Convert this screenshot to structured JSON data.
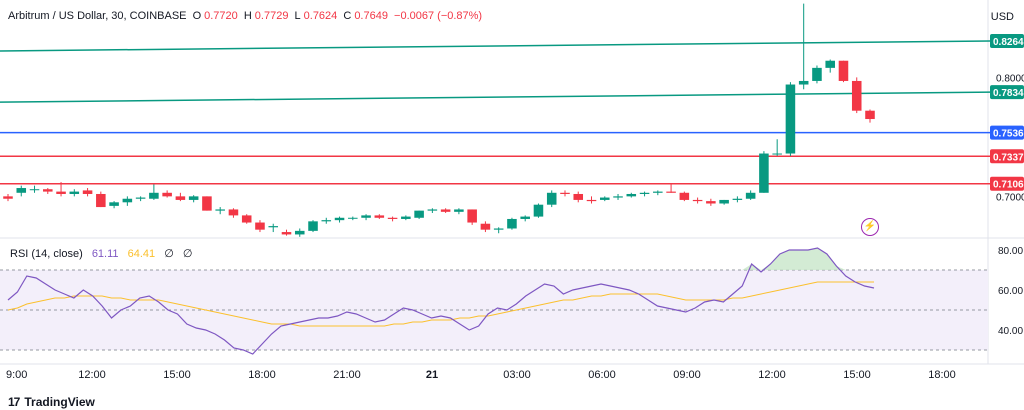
{
  "header": {
    "symbol": "Arbitrum / US Dollar, 30, COINBASE",
    "o_label": "O",
    "o": "0.7720",
    "h_label": "H",
    "h": "0.7729",
    "l_label": "L",
    "l": "0.7624",
    "c_label": "C",
    "c": "0.7649",
    "change": "−0.0067 (−0.87%)",
    "currency": "USD"
  },
  "rsi": {
    "title": "RSI (14, close)",
    "value1": "61.11",
    "value2": "64.41",
    "zero1": "∅",
    "zero2": "∅"
  },
  "brand": {
    "name": "TradingView",
    "logo": "17"
  },
  "colors": {
    "up": "#089981",
    "down": "#f23645",
    "resistance": "#089981",
    "support": "#f23645",
    "mid": "#2962ff",
    "rsi_line": "#7e57c2",
    "rsi_ma": "#fbc02d",
    "rsi_band": "#f3effa"
  },
  "icons": {
    "event": "lightning-icon"
  },
  "chart_data": [
    {
      "type": "candlestick",
      "title": "Arbitrum / US Dollar, 30, COINBASE",
      "xlabel": "",
      "ylabel": "",
      "x_ticks": [
        "9:00",
        "12:00",
        "15:00",
        "18:00",
        "21:00",
        "21",
        "03:00",
        "06:00",
        "09:00",
        "12:00",
        "15:00",
        "18:00"
      ],
      "y_ticks": [
        "0.8000",
        "0.7000"
      ],
      "price_labels": [
        {
          "label": "0.8264",
          "value": 0.8264,
          "kind": "resistance"
        },
        {
          "label": "0.7834",
          "value": 0.7834,
          "kind": "resistance"
        },
        {
          "label": "0.7536",
          "value": 0.7536,
          "kind": "mid"
        },
        {
          "label": "0.7337",
          "value": 0.7337,
          "kind": "support"
        },
        {
          "label": "0.7106",
          "value": 0.7106,
          "kind": "support"
        }
      ],
      "ylim": [
        0.665,
        0.86
      ],
      "candles": [
        [
          0.7,
          0.702,
          0.696,
          0.698
        ],
        [
          0.703,
          0.709,
          0.7,
          0.707
        ],
        [
          0.706,
          0.709,
          0.703,
          0.706
        ],
        [
          0.706,
          0.707,
          0.702,
          0.704
        ],
        [
          0.704,
          0.712,
          0.7,
          0.702
        ],
        [
          0.702,
          0.706,
          0.7,
          0.704
        ],
        [
          0.705,
          0.707,
          0.7,
          0.702
        ],
        [
          0.702,
          0.704,
          0.691,
          0.691
        ],
        [
          0.692,
          0.696,
          0.69,
          0.695
        ],
        [
          0.695,
          0.7,
          0.692,
          0.698
        ],
        [
          0.698,
          0.7,
          0.696,
          0.699
        ],
        [
          0.698,
          0.71,
          0.697,
          0.703
        ],
        [
          0.703,
          0.705,
          0.699,
          0.7
        ],
        [
          0.7,
          0.703,
          0.696,
          0.697
        ],
        [
          0.697,
          0.701,
          0.695,
          0.7
        ],
        [
          0.7,
          0.7,
          0.688,
          0.688
        ],
        [
          0.688,
          0.691,
          0.685,
          0.689
        ],
        [
          0.689,
          0.69,
          0.682,
          0.684
        ],
        [
          0.684,
          0.685,
          0.677,
          0.678
        ],
        [
          0.678,
          0.68,
          0.67,
          0.672
        ],
        [
          0.674,
          0.677,
          0.67,
          0.675
        ],
        [
          0.67,
          0.672,
          0.667,
          0.668
        ],
        [
          0.668,
          0.673,
          0.666,
          0.671
        ],
        [
          0.671,
          0.68,
          0.67,
          0.679
        ],
        [
          0.679,
          0.682,
          0.677,
          0.68
        ],
        [
          0.68,
          0.683,
          0.678,
          0.682
        ],
        [
          0.682,
          0.683,
          0.68,
          0.682
        ],
        [
          0.682,
          0.685,
          0.68,
          0.684
        ],
        [
          0.684,
          0.685,
          0.681,
          0.682
        ],
        [
          0.682,
          0.683,
          0.679,
          0.681
        ],
        [
          0.681,
          0.684,
          0.68,
          0.683
        ],
        [
          0.682,
          0.688,
          0.681,
          0.688
        ],
        [
          0.688,
          0.69,
          0.686,
          0.689
        ],
        [
          0.689,
          0.69,
          0.686,
          0.687
        ],
        [
          0.687,
          0.69,
          0.685,
          0.689
        ],
        [
          0.689,
          0.689,
          0.676,
          0.678
        ],
        [
          0.677,
          0.679,
          0.67,
          0.672
        ],
        [
          0.672,
          0.674,
          0.669,
          0.673
        ],
        [
          0.673,
          0.682,
          0.672,
          0.681
        ],
        [
          0.681,
          0.684,
          0.679,
          0.683
        ],
        [
          0.683,
          0.694,
          0.682,
          0.693
        ],
        [
          0.693,
          0.705,
          0.691,
          0.703
        ],
        [
          0.703,
          0.705,
          0.7,
          0.702
        ],
        [
          0.702,
          0.704,
          0.695,
          0.697
        ],
        [
          0.697,
          0.7,
          0.694,
          0.696
        ],
        [
          0.697,
          0.7,
          0.696,
          0.699
        ],
        [
          0.699,
          0.702,
          0.697,
          0.7
        ],
        [
          0.7,
          0.703,
          0.699,
          0.702
        ],
        [
          0.702,
          0.704,
          0.7,
          0.703
        ],
        [
          0.703,
          0.705,
          0.701,
          0.704
        ],
        [
          0.704,
          0.71,
          0.703,
          0.703
        ],
        [
          0.703,
          0.704,
          0.696,
          0.697
        ],
        [
          0.697,
          0.699,
          0.694,
          0.696
        ],
        [
          0.696,
          0.698,
          0.692,
          0.694
        ],
        [
          0.694,
          0.697,
          0.693,
          0.697
        ],
        [
          0.697,
          0.7,
          0.695,
          0.698
        ],
        [
          0.698,
          0.705,
          0.697,
          0.703
        ],
        [
          0.703,
          0.738,
          0.703,
          0.736
        ],
        [
          0.736,
          0.748,
          0.734,
          0.736
        ],
        [
          0.736,
          0.796,
          0.734,
          0.794
        ],
        [
          0.794,
          0.862,
          0.79,
          0.797
        ],
        [
          0.797,
          0.81,
          0.795,
          0.808
        ],
        [
          0.808,
          0.815,
          0.804,
          0.814
        ],
        [
          0.814,
          0.814,
          0.796,
          0.797
        ],
        [
          0.797,
          0.8,
          0.77,
          0.772
        ],
        [
          0.772,
          0.773,
          0.762,
          0.765
        ]
      ]
    },
    {
      "type": "line",
      "title": "RSI (14, close)",
      "xlabel": "",
      "ylabel": "",
      "y_ticks": [
        "80.00",
        "60.00",
        "40.00"
      ],
      "ylim": [
        26,
        86
      ],
      "bands": [
        70,
        50,
        30
      ],
      "series": [
        {
          "name": "RSI",
          "values": [
            55,
            59,
            67,
            66,
            63,
            60,
            58,
            56,
            60,
            57,
            52,
            46,
            50,
            52,
            56,
            57,
            54,
            50,
            48,
            43,
            41,
            40,
            38,
            35,
            31,
            30,
            28,
            33,
            38,
            42,
            43,
            44,
            45,
            46,
            46,
            47,
            49,
            48,
            46,
            44,
            45,
            48,
            51,
            50,
            48,
            46,
            47,
            46,
            43,
            40,
            42,
            48,
            51,
            50,
            53,
            57,
            60,
            63,
            62,
            58,
            60,
            61,
            62,
            63,
            62,
            61,
            60,
            58,
            55,
            52,
            51,
            50,
            49,
            51,
            54,
            55,
            54,
            58,
            62,
            73,
            69,
            73,
            78,
            80,
            80,
            80,
            81,
            78,
            72,
            67,
            64,
            62,
            61
          ]
        },
        {
          "name": "MA",
          "values": [
            50,
            51,
            53,
            54,
            55,
            56,
            56,
            57,
            57,
            57,
            57,
            56,
            56,
            55,
            55,
            55,
            55,
            54,
            53,
            52,
            51,
            50,
            49,
            48,
            47,
            46,
            45,
            44,
            43,
            43,
            43,
            42,
            42,
            42,
            42,
            42,
            42,
            42,
            42,
            42,
            42,
            43,
            43,
            44,
            44,
            45,
            45,
            45,
            46,
            46,
            47,
            47,
            48,
            49,
            50,
            51,
            52,
            53,
            54,
            55,
            55,
            56,
            57,
            57,
            58,
            58,
            58,
            58,
            58,
            58,
            57,
            56,
            55,
            55,
            55,
            55,
            55,
            56,
            56,
            57,
            58,
            59,
            60,
            61,
            62,
            63,
            64,
            64,
            64,
            64,
            64,
            64,
            64
          ]
        }
      ]
    }
  ]
}
